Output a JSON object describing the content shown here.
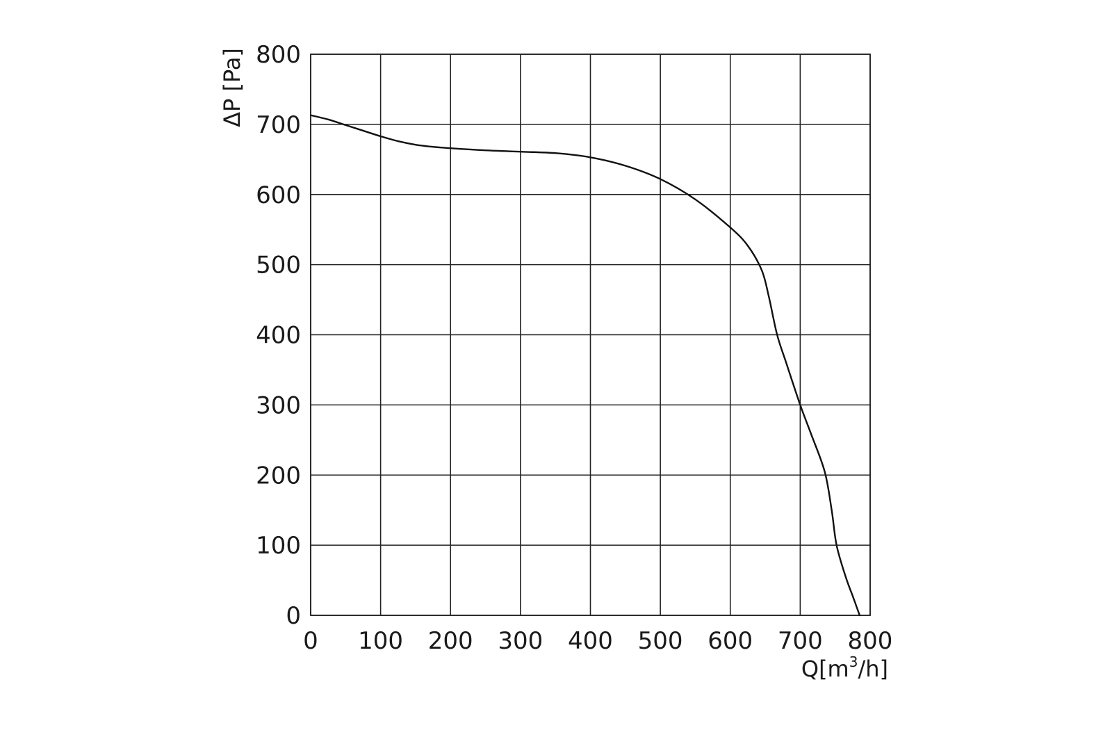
{
  "chart_data": {
    "type": "line",
    "title": "",
    "xlabel_base": "Q[m",
    "xlabel_sup": "3",
    "xlabel_tail": "/h]",
    "ylabel": "ΔP [Pa]",
    "xlim": [
      0,
      800
    ],
    "ylim": [
      0,
      800
    ],
    "x_ticks": [
      "0",
      "100",
      "200",
      "300",
      "400",
      "500",
      "600",
      "700",
      "800"
    ],
    "y_ticks": [
      "0",
      "100",
      "200",
      "300",
      "400",
      "500",
      "600",
      "700",
      "800"
    ],
    "grid": true,
    "legend": "none",
    "series": [
      {
        "color": "#111111",
        "points": [
          [
            0,
            713
          ],
          [
            25,
            707
          ],
          [
            50,
            699
          ],
          [
            75,
            691
          ],
          [
            100,
            683
          ],
          [
            125,
            676
          ],
          [
            150,
            671
          ],
          [
            175,
            668
          ],
          [
            200,
            666
          ],
          [
            250,
            663
          ],
          [
            300,
            661
          ],
          [
            350,
            659
          ],
          [
            400,
            653
          ],
          [
            450,
            641
          ],
          [
            500,
            622
          ],
          [
            550,
            593
          ],
          [
            600,
            553
          ],
          [
            625,
            527
          ],
          [
            645,
            492
          ],
          [
            655,
            455
          ],
          [
            667,
            400
          ],
          [
            680,
            360
          ],
          [
            700,
            300
          ],
          [
            715,
            260
          ],
          [
            735,
            205
          ],
          [
            745,
            150
          ],
          [
            752,
            100
          ],
          [
            765,
            55
          ],
          [
            776,
            25
          ],
          [
            785,
            0
          ]
        ]
      }
    ]
  }
}
